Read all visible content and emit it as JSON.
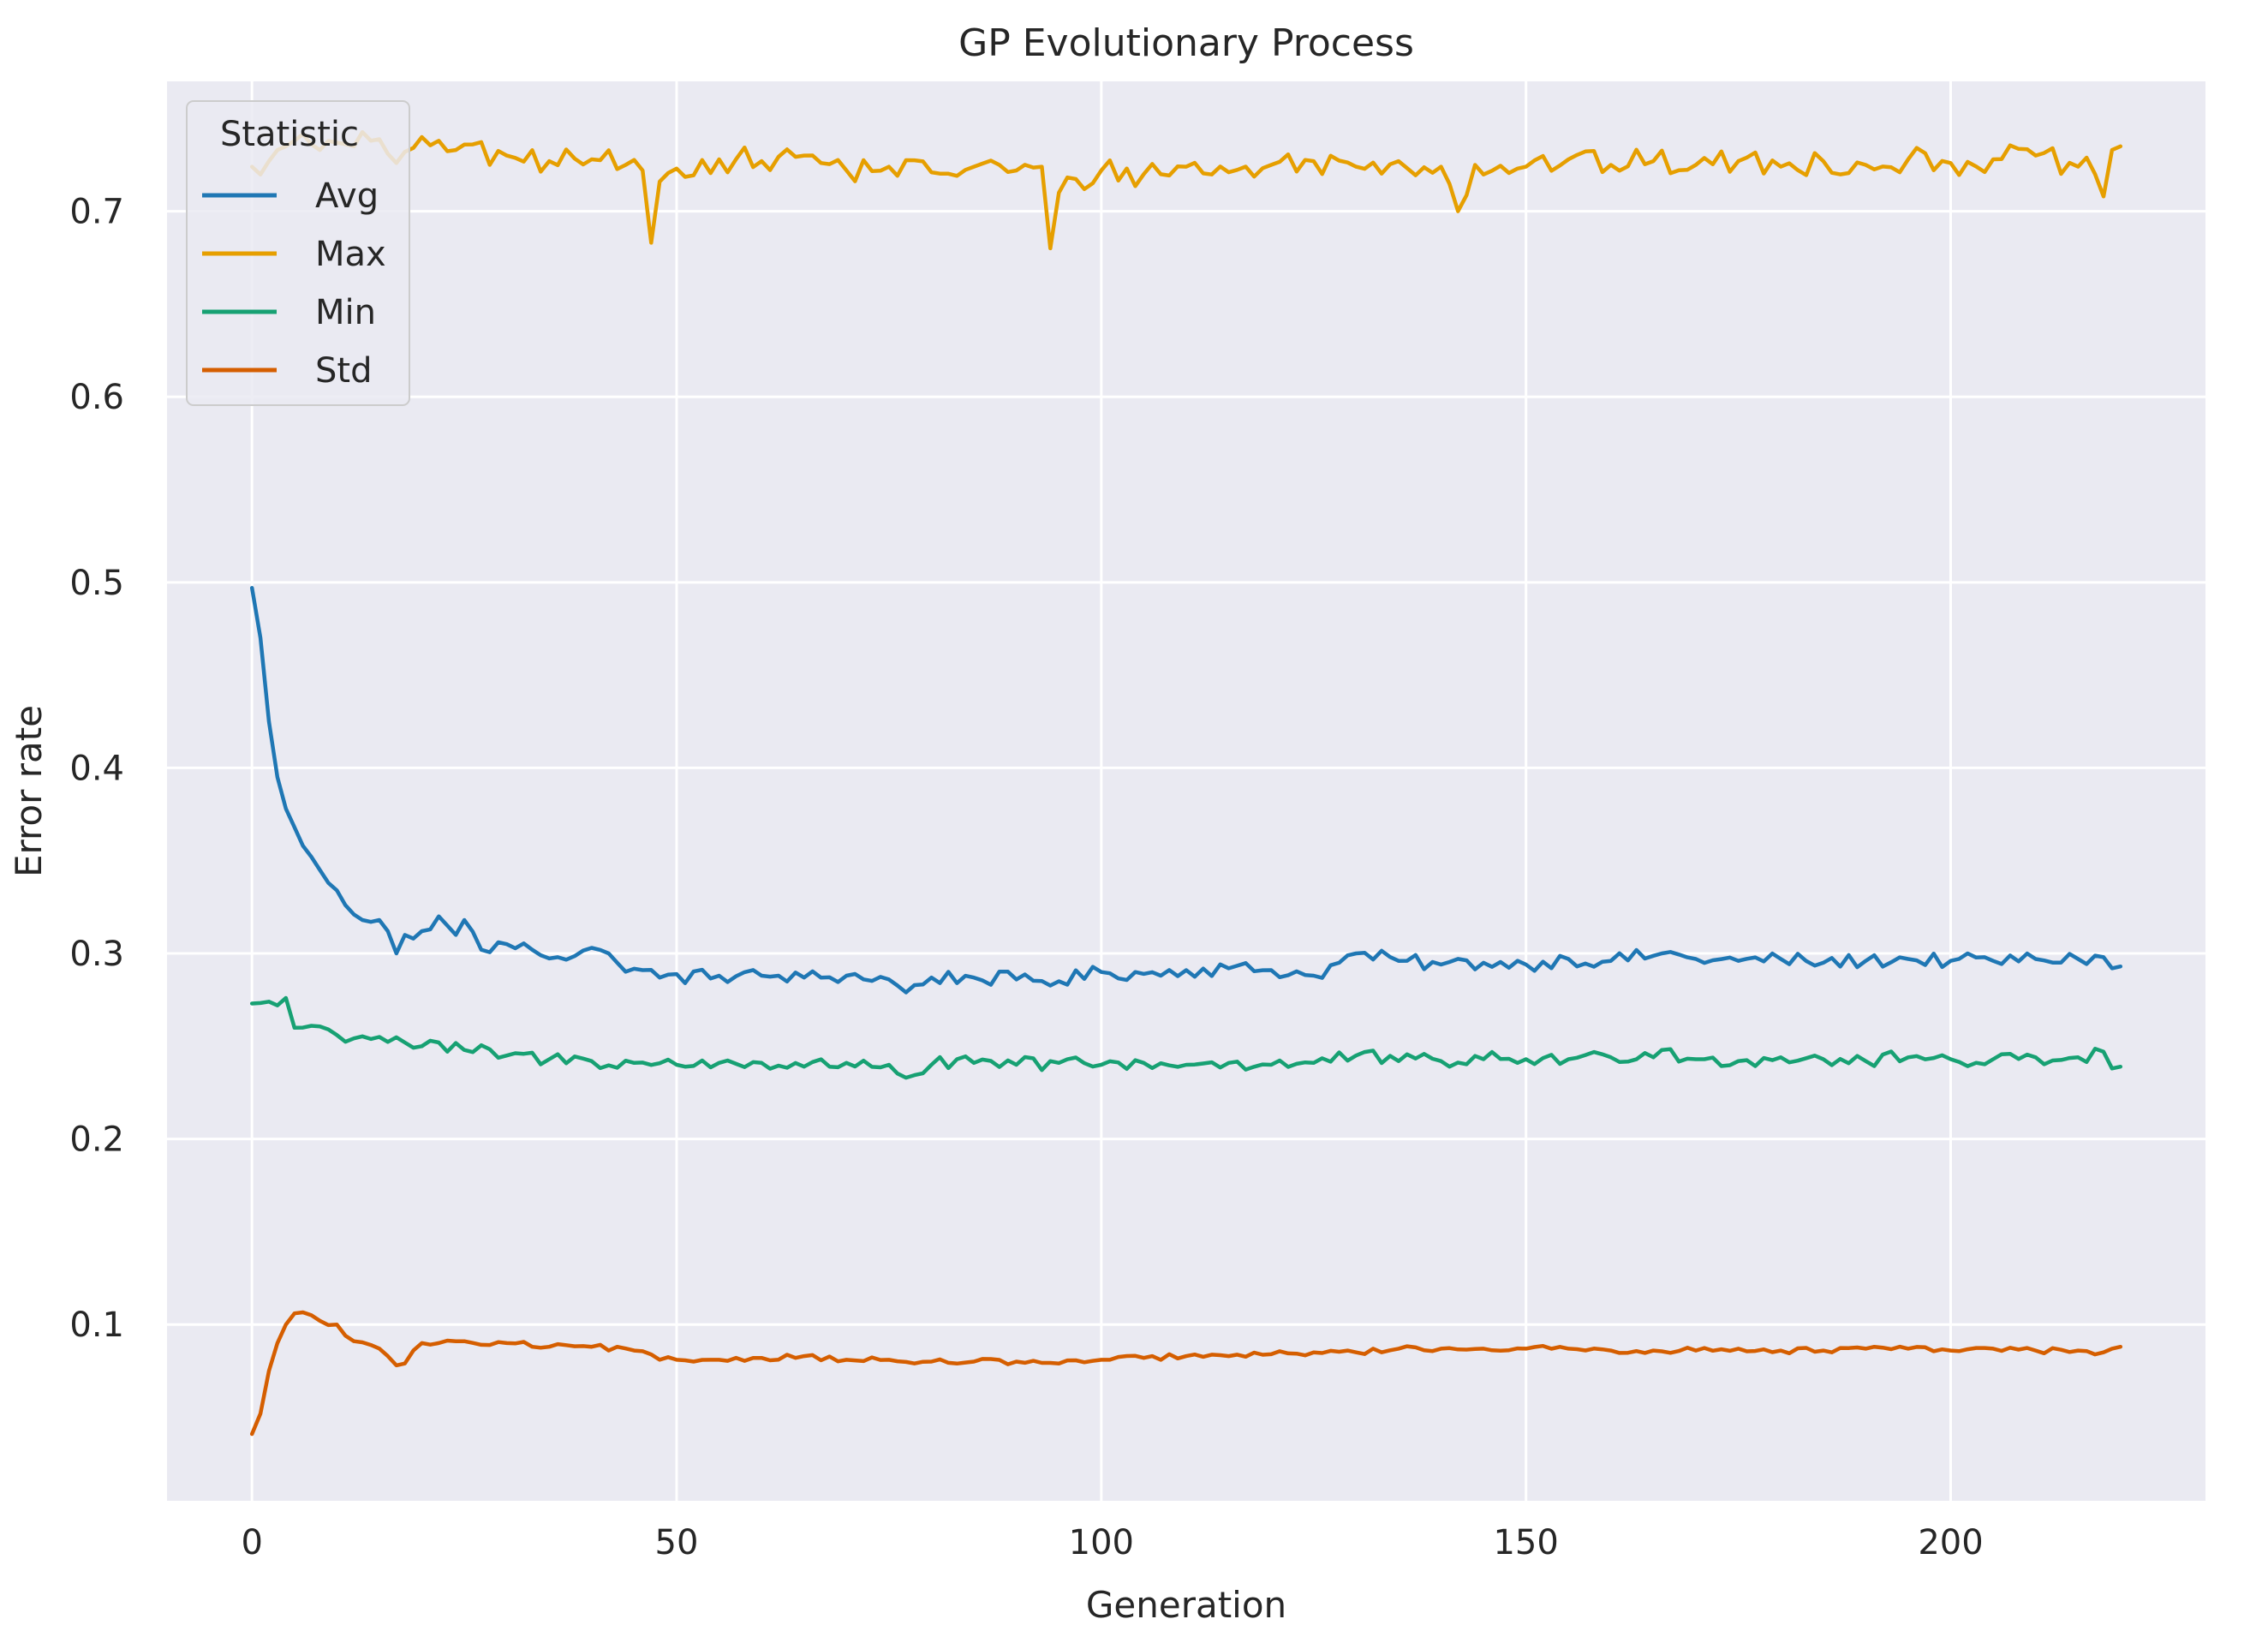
{
  "chart_data": {
    "type": "line",
    "title": "GP Evolutionary Process",
    "xlabel": "Generation",
    "ylabel": "Error rate",
    "xlim": [
      -10,
      230
    ],
    "ylim": [
      0.005,
      0.77
    ],
    "xticks": [
      0,
      50,
      100,
      150,
      200
    ],
    "yticks": [
      0.1,
      0.2,
      0.3,
      0.4,
      0.5,
      0.6,
      0.7
    ],
    "grid": true,
    "legend": {
      "title": "Statistic",
      "position": "top-left"
    },
    "series": [
      {
        "name": "Avg",
        "color": "#1f77b4",
        "key_points": [
          [
            0,
            0.497
          ],
          [
            1,
            0.47
          ],
          [
            2,
            0.425
          ],
          [
            3,
            0.395
          ],
          [
            4,
            0.378
          ],
          [
            5,
            0.368
          ],
          [
            6,
            0.358
          ],
          [
            7,
            0.352
          ],
          [
            8,
            0.345
          ],
          [
            9,
            0.338
          ],
          [
            10,
            0.334
          ],
          [
            11,
            0.326
          ],
          [
            12,
            0.321
          ],
          [
            13,
            0.318
          ],
          [
            14,
            0.317
          ],
          [
            15,
            0.318
          ],
          [
            16,
            0.312
          ],
          [
            17,
            0.3
          ],
          [
            18,
            0.31
          ],
          [
            19,
            0.308
          ],
          [
            20,
            0.312
          ],
          [
            21,
            0.313
          ],
          [
            22,
            0.32
          ],
          [
            23,
            0.315
          ],
          [
            24,
            0.31
          ],
          [
            25,
            0.318
          ],
          [
            27,
            0.302
          ],
          [
            30,
            0.305
          ],
          [
            33,
            0.302
          ],
          [
            36,
            0.298
          ],
          [
            40,
            0.303
          ],
          [
            43,
            0.295
          ],
          [
            46,
            0.291
          ],
          [
            48,
            0.287
          ],
          [
            55,
            0.288
          ],
          [
            60,
            0.288
          ],
          [
            65,
            0.287
          ],
          [
            70,
            0.288
          ],
          [
            75,
            0.286
          ],
          [
            77,
            0.279
          ],
          [
            80,
            0.287
          ],
          [
            85,
            0.287
          ],
          [
            90,
            0.286
          ],
          [
            95,
            0.285
          ],
          [
            100,
            0.29
          ],
          [
            105,
            0.289
          ],
          [
            110,
            0.291
          ],
          [
            115,
            0.292
          ],
          [
            120,
            0.291
          ],
          [
            125,
            0.288
          ],
          [
            128,
            0.295
          ],
          [
            130,
            0.3
          ],
          [
            135,
            0.296
          ],
          [
            140,
            0.294
          ],
          [
            145,
            0.295
          ],
          [
            150,
            0.294
          ],
          [
            155,
            0.297
          ],
          [
            160,
            0.296
          ],
          [
            166,
            0.3
          ],
          [
            170,
            0.297
          ],
          [
            175,
            0.296
          ],
          [
            180,
            0.297
          ],
          [
            185,
            0.295
          ],
          [
            190,
            0.296
          ],
          [
            195,
            0.297
          ],
          [
            200,
            0.296
          ],
          [
            205,
            0.296
          ],
          [
            210,
            0.297
          ],
          [
            215,
            0.297
          ],
          [
            218,
            0.298
          ],
          [
            219,
            0.292
          ],
          [
            220,
            0.293
          ]
        ],
        "noise": 0.004
      },
      {
        "name": "Max",
        "color": "#e69f00",
        "key_points": [
          [
            0,
            0.724
          ],
          [
            2,
            0.727
          ],
          [
            3,
            0.733
          ],
          [
            4,
            0.735
          ],
          [
            5,
            0.738
          ],
          [
            7,
            0.736
          ],
          [
            8,
            0.733
          ],
          [
            10,
            0.737
          ],
          [
            12,
            0.735
          ],
          [
            14,
            0.738
          ],
          [
            16,
            0.731
          ],
          [
            17,
            0.726
          ],
          [
            18,
            0.732
          ],
          [
            20,
            0.74
          ],
          [
            22,
            0.738
          ],
          [
            24,
            0.733
          ],
          [
            26,
            0.736
          ],
          [
            28,
            0.725
          ],
          [
            30,
            0.73
          ],
          [
            35,
            0.727
          ],
          [
            40,
            0.728
          ],
          [
            44,
            0.725
          ],
          [
            46,
            0.722
          ],
          [
            47,
            0.683
          ],
          [
            48,
            0.716
          ],
          [
            50,
            0.723
          ],
          [
            55,
            0.728
          ],
          [
            60,
            0.727
          ],
          [
            65,
            0.73
          ],
          [
            70,
            0.722
          ],
          [
            75,
            0.724
          ],
          [
            80,
            0.721
          ],
          [
            85,
            0.724
          ],
          [
            90,
            0.722
          ],
          [
            93,
            0.724
          ],
          [
            94,
            0.68
          ],
          [
            95,
            0.71
          ],
          [
            100,
            0.722
          ],
          [
            105,
            0.72
          ],
          [
            110,
            0.724
          ],
          [
            115,
            0.721
          ],
          [
            120,
            0.725
          ],
          [
            125,
            0.727
          ],
          [
            130,
            0.724
          ],
          [
            135,
            0.727
          ],
          [
            140,
            0.724
          ],
          [
            142,
            0.7
          ],
          [
            144,
            0.725
          ],
          [
            150,
            0.724
          ],
          [
            155,
            0.728
          ],
          [
            160,
            0.725
          ],
          [
            165,
            0.727
          ],
          [
            170,
            0.725
          ],
          [
            175,
            0.727
          ],
          [
            180,
            0.724
          ],
          [
            185,
            0.727
          ],
          [
            190,
            0.725
          ],
          [
            195,
            0.728
          ],
          [
            200,
            0.726
          ],
          [
            205,
            0.728
          ],
          [
            210,
            0.73
          ],
          [
            215,
            0.724
          ],
          [
            217,
            0.72
          ],
          [
            218,
            0.708
          ],
          [
            219,
            0.733
          ],
          [
            220,
            0.735
          ]
        ],
        "noise": 0.007
      },
      {
        "name": "Min",
        "color": "#17a173",
        "key_points": [
          [
            0,
            0.273
          ],
          [
            2,
            0.274
          ],
          [
            3,
            0.272
          ],
          [
            4,
            0.276
          ],
          [
            5,
            0.26
          ],
          [
            7,
            0.261
          ],
          [
            10,
            0.256
          ],
          [
            15,
            0.255
          ],
          [
            18,
            0.252
          ],
          [
            20,
            0.25
          ],
          [
            25,
            0.248
          ],
          [
            30,
            0.245
          ],
          [
            35,
            0.243
          ],
          [
            40,
            0.242
          ],
          [
            45,
            0.241
          ],
          [
            50,
            0.24
          ],
          [
            55,
            0.241
          ],
          [
            60,
            0.241
          ],
          [
            65,
            0.239
          ],
          [
            70,
            0.241
          ],
          [
            75,
            0.24
          ],
          [
            77,
            0.233
          ],
          [
            80,
            0.24
          ],
          [
            85,
            0.241
          ],
          [
            90,
            0.24
          ],
          [
            95,
            0.241
          ],
          [
            100,
            0.24
          ],
          [
            105,
            0.241
          ],
          [
            110,
            0.24
          ],
          [
            115,
            0.241
          ],
          [
            120,
            0.24
          ],
          [
            125,
            0.241
          ],
          [
            130,
            0.245
          ],
          [
            135,
            0.242
          ],
          [
            140,
            0.242
          ],
          [
            145,
            0.243
          ],
          [
            150,
            0.243
          ],
          [
            155,
            0.243
          ],
          [
            160,
            0.244
          ],
          [
            166,
            0.248
          ],
          [
            170,
            0.243
          ],
          [
            175,
            0.242
          ],
          [
            180,
            0.244
          ],
          [
            185,
            0.243
          ],
          [
            190,
            0.242
          ],
          [
            195,
            0.244
          ],
          [
            200,
            0.243
          ],
          [
            205,
            0.243
          ],
          [
            210,
            0.244
          ],
          [
            215,
            0.244
          ],
          [
            218,
            0.247
          ],
          [
            219,
            0.238
          ],
          [
            220,
            0.239
          ]
        ],
        "noise": 0.004
      },
      {
        "name": "Std",
        "color": "#d55e00",
        "key_points": [
          [
            0,
            0.041
          ],
          [
            1,
            0.052
          ],
          [
            2,
            0.075
          ],
          [
            3,
            0.09
          ],
          [
            4,
            0.1
          ],
          [
            5,
            0.106
          ],
          [
            7,
            0.105
          ],
          [
            8,
            0.102
          ],
          [
            10,
            0.1
          ],
          [
            11,
            0.094
          ],
          [
            12,
            0.091
          ],
          [
            14,
            0.089
          ],
          [
            16,
            0.083
          ],
          [
            17,
            0.078
          ],
          [
            18,
            0.079
          ],
          [
            19,
            0.086
          ],
          [
            20,
            0.09
          ],
          [
            22,
            0.09
          ],
          [
            25,
            0.091
          ],
          [
            28,
            0.089
          ],
          [
            30,
            0.09
          ],
          [
            35,
            0.088
          ],
          [
            40,
            0.088
          ],
          [
            45,
            0.086
          ],
          [
            48,
            0.081
          ],
          [
            50,
            0.081
          ],
          [
            55,
            0.081
          ],
          [
            60,
            0.082
          ],
          [
            65,
            0.083
          ],
          [
            70,
            0.081
          ],
          [
            75,
            0.081
          ],
          [
            78,
            0.079
          ],
          [
            80,
            0.08
          ],
          [
            85,
            0.08
          ],
          [
            90,
            0.08
          ],
          [
            95,
            0.079
          ],
          [
            100,
            0.081
          ],
          [
            105,
            0.082
          ],
          [
            110,
            0.083
          ],
          [
            115,
            0.083
          ],
          [
            120,
            0.084
          ],
          [
            125,
            0.085
          ],
          [
            130,
            0.085
          ],
          [
            135,
            0.087
          ],
          [
            140,
            0.087
          ],
          [
            145,
            0.087
          ],
          [
            150,
            0.087
          ],
          [
            155,
            0.087
          ],
          [
            160,
            0.086
          ],
          [
            165,
            0.086
          ],
          [
            170,
            0.086
          ],
          [
            175,
            0.087
          ],
          [
            180,
            0.086
          ],
          [
            185,
            0.086
          ],
          [
            190,
            0.087
          ],
          [
            195,
            0.087
          ],
          [
            200,
            0.086
          ],
          [
            205,
            0.087
          ],
          [
            210,
            0.086
          ],
          [
            215,
            0.086
          ],
          [
            218,
            0.085
          ],
          [
            219,
            0.087
          ],
          [
            220,
            0.088
          ]
        ],
        "noise": 0.0015
      }
    ]
  }
}
